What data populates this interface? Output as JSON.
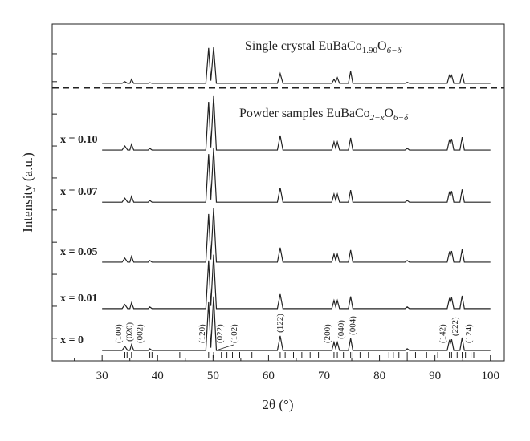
{
  "chart_data": {
    "type": "line",
    "panel_labels": [
      {
        "runs": [
          "Single crystal EuBaCo",
          "1.90",
          "O",
          "6−δ"
        ]
      },
      {
        "runs": [
          "Powder samples EuBaCo",
          "2−x",
          "O",
          "6−δ"
        ]
      }
    ],
    "xlabel": "2θ (°)",
    "ylabel": "Intensity (a.u.)",
    "xlim": [
      21,
      102.5
    ],
    "ylim": [
      0,
      100
    ],
    "xticks": [
      30,
      40,
      50,
      60,
      70,
      80,
      90,
      100
    ],
    "xminorticks": [
      25,
      35,
      45,
      55,
      65,
      75,
      85,
      95
    ],
    "yticks": [
      91.2,
      82.9,
      73.3,
      63.8,
      54.3,
      44.8,
      35.2,
      25.7,
      16.2,
      6.7
    ],
    "separator_y": 81,
    "color": "#222222",
    "x": [
      30,
      33.6,
      34.1,
      34.6,
      35.0,
      35.3,
      35.7,
      38.3,
      38.6,
      39.0,
      48.7,
      49.2,
      49.6,
      50.1,
      50.6,
      61.6,
      62.1,
      62.6,
      71.4,
      71.8,
      72.1,
      72.4,
      72.8,
      74.4,
      74.8,
      75.2,
      84.6,
      85.0,
      85.4,
      92.2,
      92.6,
      92.8,
      93.0,
      93.4,
      94.5,
      94.9,
      95.3,
      100
    ],
    "series": [
      {
        "values": [
          82.4,
          82.4,
          82.9,
          82.4,
          82.4,
          83.6,
          82.4,
          82.4,
          82.6,
          82.4,
          82.4,
          92.9,
          83.2,
          93.1,
          82.4,
          82.4,
          85.3,
          82.4,
          82.4,
          83.6,
          82.8,
          84.1,
          82.4,
          82.4,
          86.0,
          82.4,
          82.4,
          82.7,
          82.4,
          82.4,
          84.8,
          84.2,
          84.8,
          82.4,
          82.4,
          85.3,
          82.4,
          82.4
        ]
      },
      {
        "name": "x = 0.10",
        "values": [
          62.6,
          62.6,
          63.8,
          62.6,
          62.6,
          64.3,
          62.6,
          62.6,
          63.1,
          62.6,
          62.6,
          76.9,
          63.4,
          78.6,
          62.6,
          62.6,
          66.9,
          62.6,
          62.6,
          65.0,
          63.2,
          65.0,
          62.6,
          62.6,
          66.2,
          62.6,
          62.6,
          63.1,
          62.6,
          62.6,
          65.5,
          64.8,
          65.9,
          62.6,
          62.6,
          66.4,
          62.6,
          62.6
        ]
      },
      {
        "name": "x = 0.07",
        "values": [
          47.1,
          47.1,
          48.3,
          47.1,
          47.1,
          48.8,
          47.1,
          47.1,
          47.6,
          47.1,
          47.1,
          61.4,
          47.9,
          63.1,
          47.1,
          47.1,
          51.4,
          47.1,
          47.1,
          49.5,
          47.7,
          49.5,
          47.1,
          47.1,
          50.7,
          47.1,
          47.1,
          47.6,
          47.1,
          47.1,
          50.0,
          49.3,
          50.4,
          47.1,
          47.1,
          50.9,
          47.1,
          47.1
        ]
      },
      {
        "name": "x = 0.05",
        "values": [
          29.3,
          29.3,
          30.5,
          29.3,
          29.3,
          31.0,
          29.3,
          29.3,
          29.8,
          29.3,
          29.3,
          43.6,
          30.1,
          45.3,
          29.3,
          29.3,
          33.6,
          29.3,
          29.3,
          31.7,
          29.9,
          31.7,
          29.3,
          29.3,
          32.9,
          29.3,
          29.3,
          29.8,
          29.3,
          29.3,
          32.2,
          31.5,
          32.6,
          29.3,
          29.3,
          33.1,
          29.3,
          29.3
        ]
      },
      {
        "name": "x = 0.01",
        "values": [
          15.5,
          15.5,
          16.7,
          15.5,
          15.5,
          17.2,
          15.5,
          15.5,
          16.0,
          15.5,
          15.5,
          29.8,
          16.3,
          31.5,
          15.5,
          15.5,
          19.8,
          15.5,
          15.5,
          17.9,
          16.1,
          17.9,
          15.5,
          15.5,
          19.1,
          15.5,
          15.5,
          16.0,
          15.5,
          15.5,
          18.4,
          17.7,
          18.8,
          15.5,
          15.5,
          19.3,
          15.5,
          15.5
        ]
      },
      {
        "name": "x = 0",
        "values": [
          3.1,
          3.1,
          4.3,
          3.1,
          3.1,
          4.8,
          3.1,
          3.1,
          3.6,
          3.1,
          3.1,
          17.4,
          3.9,
          19.1,
          3.1,
          3.1,
          7.4,
          3.1,
          3.1,
          5.5,
          3.7,
          5.5,
          3.1,
          3.1,
          6.7,
          3.1,
          3.1,
          3.6,
          3.1,
          3.1,
          6.0,
          5.3,
          6.4,
          3.1,
          3.1,
          6.9,
          3.1,
          3.1
        ]
      }
    ],
    "annotations": [
      {
        "text": "(100)",
        "x": 32.9
      },
      {
        "text": "(020)",
        "x": 34.8
      },
      {
        "text": "(002)",
        "x": 36.7
      },
      {
        "text": "(120)",
        "x": 47.9
      },
      {
        "text": "(022)",
        "x": 51.1
      },
      {
        "text": "(102)",
        "x": 53.7
      },
      {
        "text": "(122)",
        "x": 62.0
      },
      {
        "text": "(200)",
        "x": 70.5
      },
      {
        "text": "(040)",
        "x": 73.0
      },
      {
        "text": "(004)",
        "x": 75.1
      },
      {
        "text": "(142)",
        "x": 91.3
      },
      {
        "text": "(222)",
        "x": 93.5
      },
      {
        "text": "(124)",
        "x": 96.0
      }
    ],
    "reflections": [
      34.1,
      34.5,
      35.3,
      38.6,
      39.0,
      44.0,
      49.2,
      50.1,
      51.5,
      52.5,
      53.5,
      54.8,
      57.0,
      59.0,
      62.1,
      63.0,
      64.5,
      66.0,
      67.5,
      69.0,
      71.8,
      72.4,
      73.5,
      74.8,
      75.2,
      76.5,
      78.0,
      81.7,
      82.5,
      83.5,
      85.0,
      86.5,
      88.5,
      90.5,
      92.6,
      93.0,
      94.0,
      94.9,
      95.5,
      96.5,
      97.0
    ]
  }
}
